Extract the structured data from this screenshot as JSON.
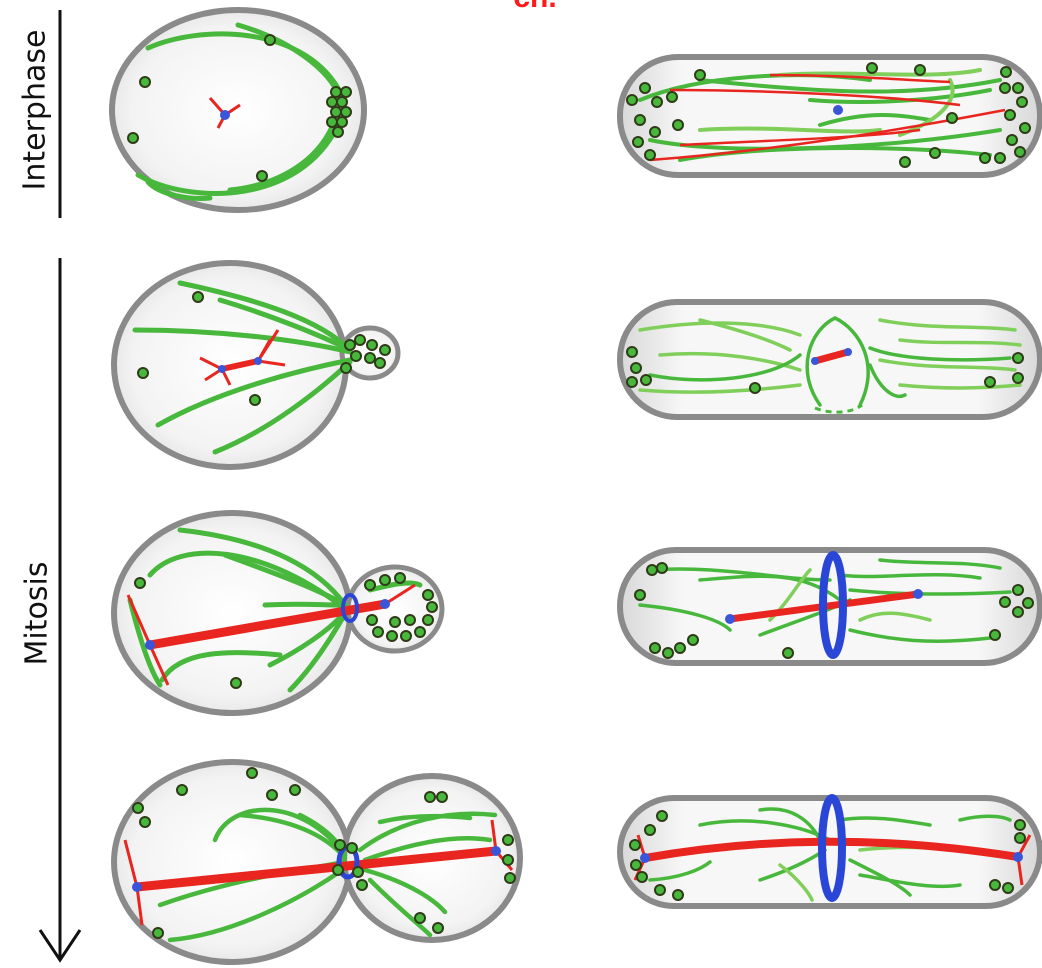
{
  "top_title": "ch.",
  "axis": {
    "interphase": "Interphase",
    "mitosis": "Mitosis"
  },
  "colors": {
    "microtubule": "#48b83c",
    "microtubule_light": "#7fcf5a",
    "spindle": "#e8261f",
    "spb": "#3b55d8",
    "ring": "#2a46d6",
    "cell_outline": "#8a8a8a",
    "cell_fill": "#ececec",
    "puncta": "#2f3a18"
  },
  "icons": [
    "arrow-down-icon"
  ]
}
